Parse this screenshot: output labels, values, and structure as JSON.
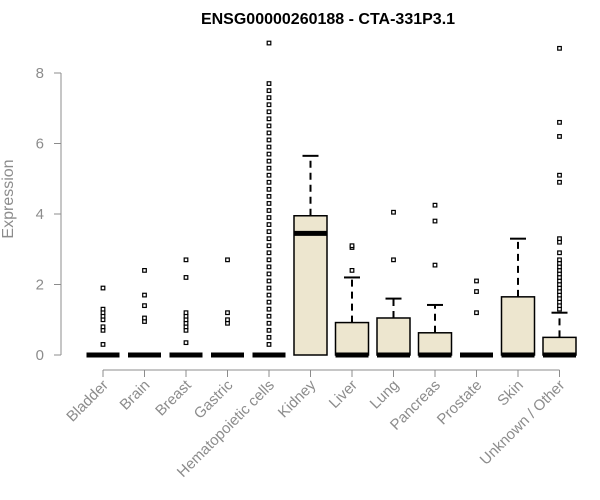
{
  "chart_data": {
    "type": "box",
    "title": "ENSG00000260188 - CTA-331P3.1",
    "xlabel": "",
    "ylabel": "Expression",
    "ylim": [
      0,
      8
    ],
    "yticks": [
      0,
      2,
      4,
      6,
      8
    ],
    "grid": false,
    "legend": "none",
    "box_fill": "#ede6cf",
    "box_stroke": "#000000",
    "axis_color": "#8c8c8c",
    "categories": [
      "Bladder",
      "Brain",
      "Breast",
      "Gastric",
      "Hematopoietic cells",
      "Kidney",
      "Liver",
      "Lung",
      "Pancreas",
      "Prostate",
      "Skin",
      "Unknown / Other"
    ],
    "boxes": [
      {
        "q1": 0,
        "median": 0,
        "q3": 0,
        "whisker_low": 0,
        "whisker_high": 0,
        "outliers": [
          0.3,
          0.7,
          0.8,
          1.0,
          1.1,
          1.2,
          1.3,
          1.9
        ]
      },
      {
        "q1": 0,
        "median": 0,
        "q3": 0,
        "whisker_low": 0,
        "whisker_high": 0,
        "outliers": [
          0.95,
          1.05,
          1.4,
          1.7,
          2.4
        ]
      },
      {
        "q1": 0,
        "median": 0,
        "q3": 0,
        "whisker_low": 0,
        "whisker_high": 0,
        "outliers": [
          0.35,
          0.7,
          0.8,
          0.9,
          1.0,
          1.1,
          1.2,
          2.2,
          2.7
        ]
      },
      {
        "q1": 0,
        "median": 0,
        "q3": 0,
        "whisker_low": 0,
        "whisker_high": 0,
        "outliers": [
          0.9,
          1.0,
          1.2,
          2.7
        ]
      },
      {
        "q1": 0,
        "median": 0,
        "q3": 0,
        "whisker_low": 0,
        "whisker_high": 0,
        "outliers": [
          0.3,
          0.5,
          0.7,
          0.9,
          1.1,
          1.3,
          1.5,
          1.7,
          1.9,
          2.1,
          2.3,
          2.5,
          2.7,
          2.9,
          3.1,
          3.3,
          3.5,
          3.7,
          3.9,
          4.1,
          4.3,
          4.5,
          4.7,
          4.9,
          5.1,
          5.3,
          5.5,
          5.7,
          5.9,
          6.1,
          6.3,
          6.5,
          6.7,
          6.9,
          7.1,
          7.3,
          7.5,
          7.7,
          8.85
        ]
      },
      {
        "q1": 0,
        "median": 3.45,
        "q3": 3.95,
        "whisker_low": 0,
        "whisker_high": 5.65,
        "outliers": []
      },
      {
        "q1": 0,
        "median": 0,
        "q3": 0.92,
        "whisker_low": 0,
        "whisker_high": 2.2,
        "outliers": [
          2.4,
          3.05,
          3.1
        ]
      },
      {
        "q1": 0,
        "median": 0,
        "q3": 1.05,
        "whisker_low": 0,
        "whisker_high": 1.6,
        "outliers": [
          2.7,
          4.05
        ]
      },
      {
        "q1": 0,
        "median": 0,
        "q3": 0.63,
        "whisker_low": 0,
        "whisker_high": 1.42,
        "outliers": [
          2.55,
          3.8,
          4.25
        ]
      },
      {
        "q1": 0,
        "median": 0,
        "q3": 0,
        "whisker_low": 0,
        "whisker_high": 0,
        "outliers": [
          1.2,
          1.8,
          2.1
        ]
      },
      {
        "q1": 0,
        "median": 0,
        "q3": 1.65,
        "whisker_low": 0,
        "whisker_high": 3.3,
        "outliers": []
      },
      {
        "q1": 0,
        "median": 0,
        "q3": 0.5,
        "whisker_low": 0,
        "whisker_high": 1.2,
        "outliers": [
          1.3,
          1.4,
          1.5,
          1.6,
          1.7,
          1.8,
          1.9,
          2.0,
          2.1,
          2.2,
          2.3,
          2.4,
          2.5,
          2.6,
          2.7,
          2.9,
          3.2,
          3.3,
          4.9,
          5.1,
          6.2,
          6.6,
          8.7
        ]
      }
    ]
  }
}
